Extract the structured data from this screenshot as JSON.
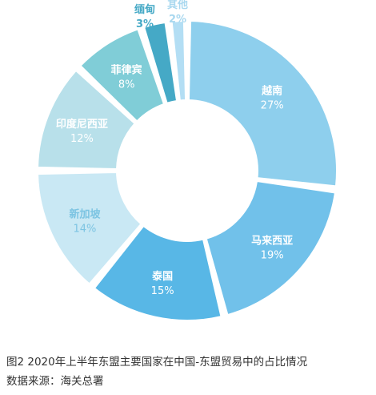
{
  "chart_data": {
    "type": "pie",
    "donut": true,
    "slices": [
      {
        "label": "越南",
        "value": 27,
        "value_label": "27%",
        "color": "#8ecfed",
        "text_color": "#ffffff"
      },
      {
        "label": "马来西亚",
        "value": 19,
        "value_label": "19%",
        "color": "#71c1ea",
        "text_color": "#ffffff"
      },
      {
        "label": "泰国",
        "value": 15,
        "value_label": "15%",
        "color": "#58b7e6",
        "text_color": "#ffffff"
      },
      {
        "label": "新加坡",
        "value": 14,
        "value_label": "14%",
        "color": "#c9e8f4",
        "text_color": "#7cc4e2"
      },
      {
        "label": "印度尼西亚",
        "value": 12,
        "value_label": "12%",
        "color": "#b8e0ea",
        "text_color": "#ffffff"
      },
      {
        "label": "菲律宾",
        "value": 8,
        "value_label": "8%",
        "color": "#80cdd7",
        "text_color": "#ffffff"
      },
      {
        "label": "缅甸",
        "value": 3,
        "value_label": "3%",
        "color": "#45a9c6",
        "text_color": "#45a9c6"
      },
      {
        "label": "其他",
        "value": 2,
        "value_label": "2%",
        "color": "#b3def4",
        "text_color": "#a9d8ef"
      }
    ]
  },
  "caption": {
    "title": "图2 2020年上半年东盟主要国家在中国-东盟贸易中的占比情况",
    "source": "数据来源：海关总署"
  }
}
